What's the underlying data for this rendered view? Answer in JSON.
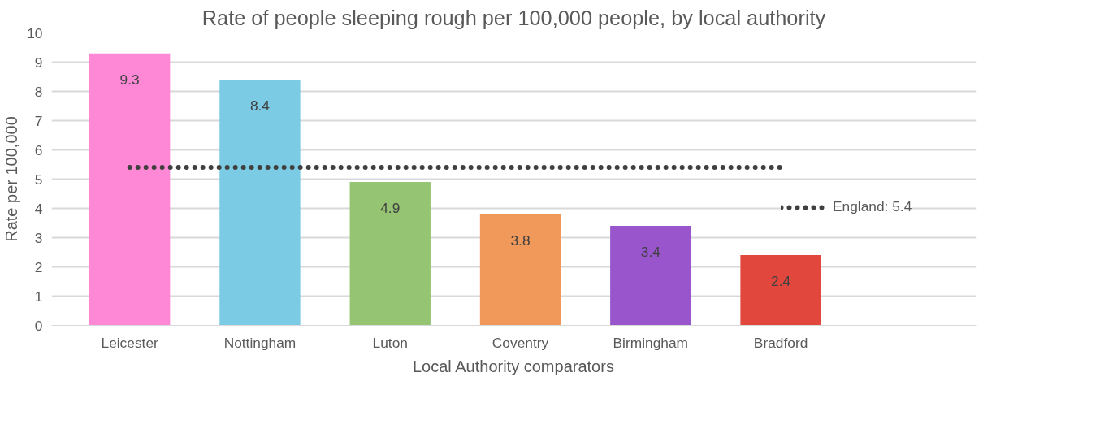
{
  "chart_data": {
    "type": "bar",
    "title": "Rate of people sleeping rough per 100,000 people, by local authority",
    "xlabel": "Local Authority comparators",
    "ylabel": "Rate per 100,000",
    "categories": [
      "Leicester",
      "Nottingham",
      "Luton",
      "Coventry",
      "Birmingham",
      "Bradford"
    ],
    "series": [
      {
        "colors": [
          "#ff88d6",
          "#7acbe3",
          "#95c572",
          "#f1995a",
          "#9955cc",
          "#e2473d"
        ],
        "values": [
          9.3,
          8.4,
          4.9,
          3.8,
          3.4,
          2.4
        ],
        "value_labels": [
          "9.3",
          "8.4",
          "4.9",
          "3.8",
          "3.4",
          "2.4"
        ]
      },
      {
        "type": "line",
        "name": "England: 5.4",
        "color": "#404040",
        "line_style": "dotted",
        "values": [
          5.4,
          5.4,
          5.4,
          5.4,
          5.4,
          5.4
        ]
      }
    ],
    "ylim": [
      0,
      10
    ],
    "yticks": [
      0,
      1,
      2,
      3,
      4,
      5,
      6,
      7,
      8,
      9,
      10
    ],
    "grid": "y",
    "legend": "right"
  }
}
